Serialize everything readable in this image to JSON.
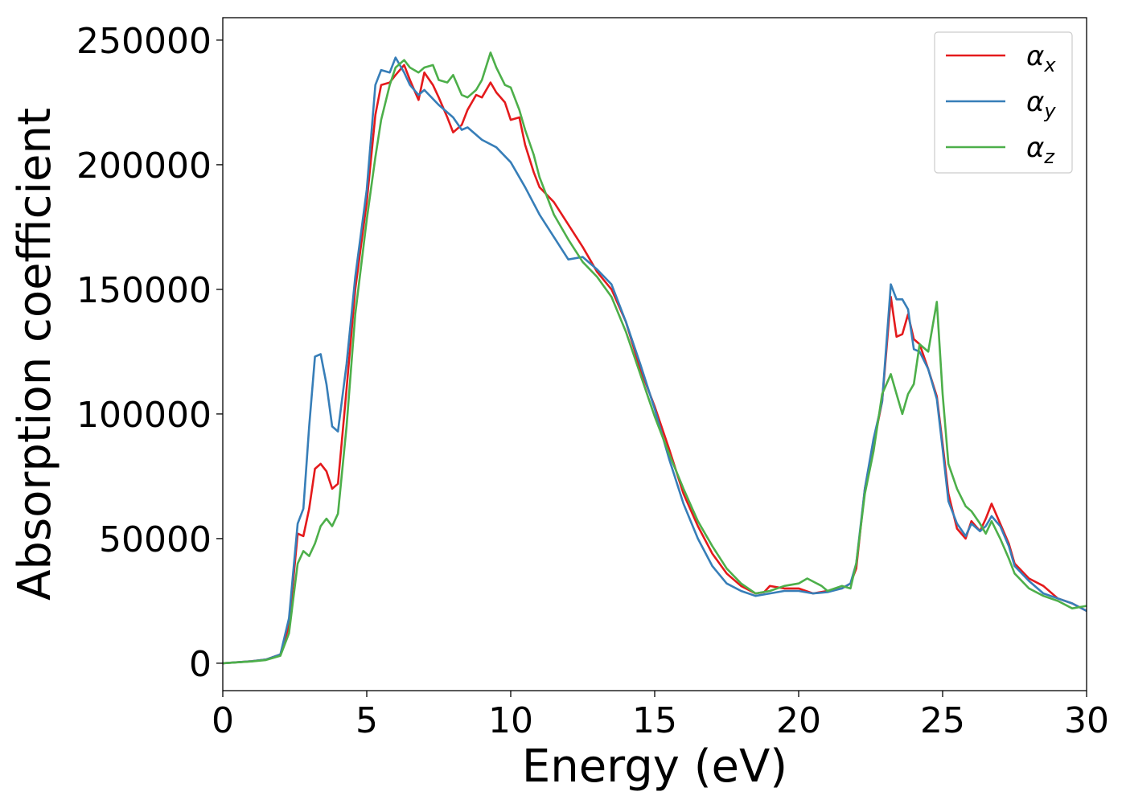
{
  "chart_data": {
    "type": "line",
    "title": "",
    "xlabel": "Energy (eV)",
    "ylabel": "Absorption coefficient",
    "xlim": [
      0,
      30
    ],
    "ylim": [
      -11000,
      259000
    ],
    "xticks": [
      0,
      5,
      10,
      15,
      20,
      25,
      30
    ],
    "xtick_labels": [
      "0",
      "5",
      "10",
      "15",
      "20",
      "25",
      "30"
    ],
    "yticks": [
      0,
      50000,
      100000,
      150000,
      200000,
      250000
    ],
    "ytick_labels": [
      "0",
      "50000",
      "100000",
      "150000",
      "200000",
      "250000"
    ],
    "grid": false,
    "legend_position": "top-right",
    "series": [
      {
        "name": "αx",
        "symbol": "α",
        "subscript": "x",
        "color": "#e41a1c",
        "x": [
          0,
          1,
          1.5,
          2,
          2.3,
          2.6,
          2.8,
          3,
          3.2,
          3.4,
          3.6,
          3.8,
          4,
          4.3,
          4.6,
          5,
          5.3,
          5.5,
          5.8,
          6,
          6.3,
          6.5,
          6.8,
          7,
          7.3,
          7.5,
          7.8,
          8,
          8.3,
          8.5,
          8.8,
          9,
          9.3,
          9.5,
          9.8,
          10,
          10.3,
          10.5,
          10.8,
          11,
          11.5,
          12,
          12.5,
          13,
          13.5,
          14,
          14.5,
          15,
          15.5,
          16,
          16.5,
          17,
          17.5,
          18,
          18.5,
          18.8,
          19,
          19.5,
          20,
          20.5,
          21,
          21.5,
          21.8,
          22,
          22.3,
          22.6,
          22.9,
          23.2,
          23.4,
          23.6,
          23.8,
          24,
          24.2,
          24.5,
          24.8,
          25,
          25.2,
          25.5,
          25.8,
          26,
          26.3,
          26.5,
          26.7,
          27,
          27.3,
          27.5,
          28,
          28.5,
          29,
          29.5,
          30
        ],
        "y": [
          0,
          800,
          1500,
          3500,
          15000,
          52000,
          51000,
          62000,
          78000,
          80000,
          77000,
          70000,
          72000,
          110000,
          150000,
          185000,
          220000,
          232000,
          233000,
          236000,
          240000,
          234000,
          226000,
          237000,
          232000,
          227000,
          219000,
          213000,
          216000,
          222000,
          228000,
          227000,
          233000,
          229000,
          225000,
          218000,
          219000,
          208000,
          197000,
          191000,
          185000,
          176000,
          167000,
          157000,
          150000,
          137000,
          118000,
          103000,
          86000,
          68000,
          55000,
          44000,
          36000,
          31000,
          28000,
          28500,
          31000,
          30000,
          30000,
          28000,
          29000,
          30000,
          32000,
          38000,
          70000,
          88000,
          105000,
          147000,
          131000,
          132000,
          140000,
          130000,
          128000,
          118000,
          107000,
          88000,
          68000,
          54000,
          50000,
          57000,
          53000,
          58000,
          64000,
          56000,
          48000,
          40000,
          34000,
          31000,
          26000,
          24000,
          21000
        ]
      },
      {
        "name": "αy",
        "symbol": "α",
        "subscript": "y",
        "color": "#377eb8",
        "x": [
          0,
          1,
          1.5,
          2,
          2.3,
          2.6,
          2.8,
          3,
          3.2,
          3.4,
          3.6,
          3.8,
          4,
          4.3,
          4.6,
          5,
          5.3,
          5.5,
          5.8,
          6,
          6.3,
          6.5,
          6.8,
          7,
          7.5,
          8,
          8.3,
          8.5,
          9,
          9.5,
          10,
          10.5,
          11,
          11.5,
          12,
          12.5,
          13,
          13.5,
          14,
          14.5,
          15,
          15.5,
          16,
          16.5,
          17,
          17.5,
          18,
          18.5,
          19,
          19.5,
          20,
          20.5,
          21,
          21.5,
          21.8,
          22,
          22.3,
          22.6,
          22.9,
          23.2,
          23.4,
          23.6,
          23.8,
          24,
          24.2,
          24.5,
          24.8,
          25,
          25.2,
          25.5,
          25.8,
          26,
          26.3,
          26.5,
          26.7,
          27,
          27.3,
          27.5,
          28,
          28.5,
          29,
          29.5,
          30
        ],
        "y": [
          0,
          800,
          1500,
          3500,
          18000,
          56000,
          62000,
          95000,
          123000,
          124000,
          112000,
          95000,
          93000,
          120000,
          155000,
          190000,
          232000,
          238000,
          237000,
          243000,
          237000,
          232000,
          228000,
          230000,
          224000,
          219000,
          214000,
          215000,
          210000,
          207000,
          201000,
          191000,
          180000,
          171000,
          162000,
          163000,
          158000,
          152000,
          137000,
          120000,
          102000,
          82000,
          64000,
          50000,
          39000,
          32000,
          29000,
          27000,
          28000,
          29000,
          29000,
          28000,
          28500,
          30000,
          32000,
          40000,
          70000,
          90000,
          105000,
          152000,
          146000,
          146000,
          142000,
          126000,
          125000,
          118000,
          106000,
          86000,
          65000,
          56000,
          51000,
          56000,
          53000,
          55000,
          59000,
          55000,
          47000,
          39000,
          33000,
          28000,
          26000,
          24000,
          21000
        ]
      },
      {
        "name": "αz",
        "symbol": "α",
        "subscript": "z",
        "color": "#4daf4a",
        "x": [
          0,
          1,
          1.5,
          2,
          2.3,
          2.6,
          2.8,
          3,
          3.2,
          3.4,
          3.6,
          3.8,
          4,
          4.3,
          4.6,
          5,
          5.3,
          5.5,
          5.8,
          6,
          6.3,
          6.5,
          6.8,
          7,
          7.3,
          7.5,
          7.8,
          8,
          8.3,
          8.5,
          8.8,
          9,
          9.3,
          9.5,
          9.8,
          10,
          10.3,
          10.5,
          10.8,
          11,
          11.5,
          12,
          12.5,
          13,
          13.5,
          14,
          14.5,
          15,
          15.5,
          16,
          16.5,
          17,
          17.5,
          18,
          18.5,
          19,
          19.5,
          20,
          20.3,
          20.8,
          21,
          21.5,
          21.8,
          22,
          22.3,
          22.6,
          22.9,
          23.2,
          23.4,
          23.6,
          23.8,
          24,
          24.2,
          24.5,
          24.8,
          25,
          25.2,
          25.5,
          25.8,
          26,
          26.3,
          26.5,
          26.7,
          27,
          27.3,
          27.5,
          28,
          28.5,
          29,
          29.5,
          30
        ],
        "y": [
          0,
          700,
          1300,
          3000,
          12000,
          40000,
          45000,
          43000,
          48000,
          55000,
          58000,
          55000,
          60000,
          95000,
          140000,
          178000,
          203000,
          218000,
          232000,
          239000,
          242000,
          239000,
          237000,
          239000,
          240000,
          234000,
          233000,
          236000,
          228000,
          227000,
          230000,
          234000,
          245000,
          239000,
          232000,
          231000,
          222000,
          214000,
          204000,
          195000,
          180000,
          170000,
          161000,
          155000,
          147000,
          133000,
          116000,
          99000,
          84000,
          70000,
          57000,
          47000,
          38000,
          32000,
          28000,
          29000,
          31000,
          32000,
          34000,
          31000,
          29000,
          31000,
          30000,
          40000,
          68000,
          85000,
          108000,
          116000,
          108000,
          100000,
          108000,
          112000,
          128000,
          125000,
          145000,
          108000,
          80000,
          70000,
          63000,
          61000,
          56000,
          52000,
          57000,
          50000,
          42000,
          36000,
          30000,
          27000,
          25000,
          22000,
          23000
        ]
      }
    ]
  }
}
